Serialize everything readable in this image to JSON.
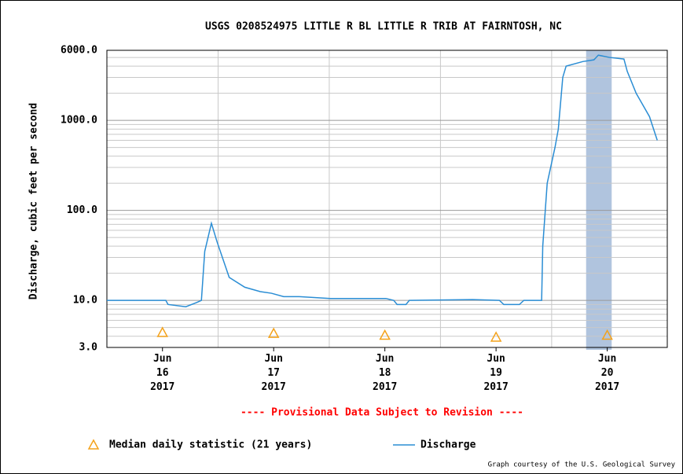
{
  "chart_data": {
    "type": "line",
    "title": "USGS 0208524975 LITTLE R BL LITTLE R TRIB AT FAIRNTOSH, NC",
    "ylabel": "Discharge, cubic feet per second",
    "annotation": "---- Provisional Data Subject to Revision ----",
    "footer": "Graph courtesy of the U.S. Geological Survey",
    "log_y": true,
    "grid": true,
    "xlim": [
      16,
      21.04
    ],
    "ylim": [
      3,
      6000
    ],
    "yticks": [
      {
        "value": 3,
        "label": "3.0"
      },
      {
        "value": 10,
        "label": "10.0"
      },
      {
        "value": 100,
        "label": "100.0"
      },
      {
        "value": 1000,
        "label": "1000.0"
      },
      {
        "value": 6000,
        "label": "6000.0"
      }
    ],
    "yminor": [
      4,
      5,
      6,
      7,
      8,
      9,
      20,
      30,
      40,
      50,
      60,
      70,
      80,
      90,
      200,
      300,
      400,
      500,
      600,
      700,
      800,
      900,
      2000,
      3000,
      4000,
      5000
    ],
    "xticks": [
      {
        "value": 16.5,
        "label": "Jun 16 2017"
      },
      {
        "value": 17.5,
        "label": "Jun 17 2017"
      },
      {
        "value": 18.5,
        "label": "Jun 18 2017"
      },
      {
        "value": 19.5,
        "label": "Jun 19 2017"
      },
      {
        "value": 20.5,
        "label": "Jun 20 2017"
      }
    ],
    "xgrid": [
      17,
      18,
      19,
      20
    ],
    "highlight": {
      "from": 20.31,
      "to": 20.54,
      "color": "#b0c4de"
    },
    "series": [
      {
        "name": "Median daily statistic (21 years)",
        "color": "#f4a21b",
        "marker": "triangle",
        "x": [
          16.5,
          17.5,
          18.5,
          19.5,
          20.5
        ],
        "values": [
          4.4,
          4.3,
          4.1,
          3.9,
          4.1
        ]
      },
      {
        "name": "Discharge",
        "color": "#2a8dd4",
        "x": [
          16.0,
          16.53,
          16.55,
          16.71,
          16.81,
          16.85,
          16.88,
          16.94,
          16.99,
          17.1,
          17.24,
          17.38,
          17.48,
          17.59,
          17.73,
          18.01,
          18.51,
          18.58,
          18.61,
          18.69,
          18.72,
          19.29,
          19.53,
          19.57,
          19.71,
          19.75,
          19.91,
          19.92,
          19.96,
          20.03,
          20.06,
          20.1,
          20.13,
          20.28,
          20.38,
          20.42,
          20.52,
          20.65,
          20.68,
          20.76,
          20.88,
          20.95
        ],
        "values": [
          10,
          10,
          9,
          8.5,
          9.5,
          10,
          35,
          72,
          45,
          18,
          14,
          12.5,
          12,
          11,
          11,
          10.5,
          10.5,
          10,
          9,
          9,
          10,
          10.2,
          10,
          9,
          9,
          10,
          10,
          40,
          200,
          500,
          800,
          3000,
          4000,
          4500,
          4700,
          5300,
          5000,
          4800,
          3500,
          2000,
          1100,
          600
        ]
      }
    ]
  }
}
